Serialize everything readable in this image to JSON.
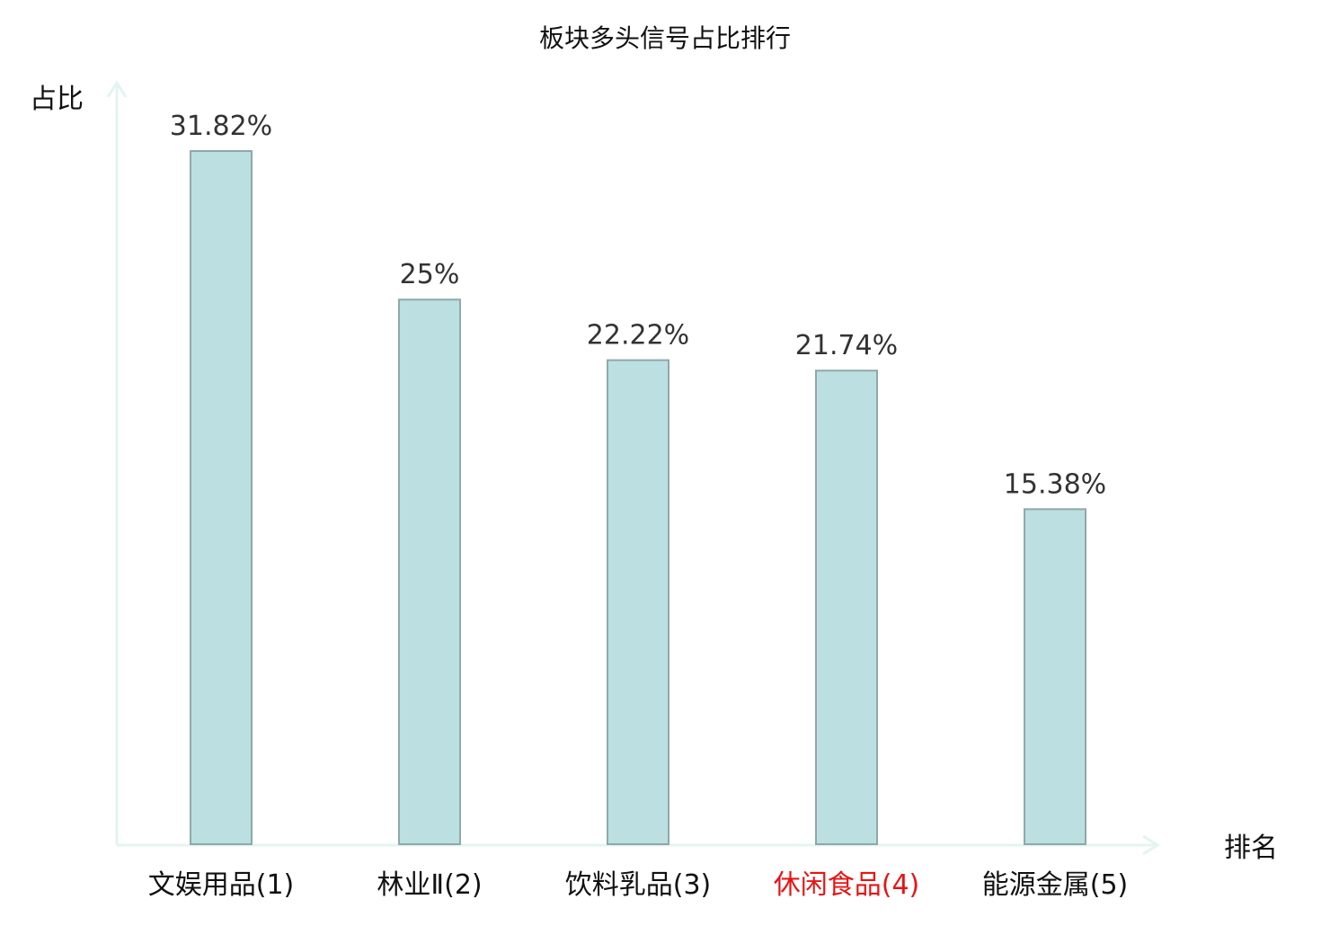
{
  "chart_data": {
    "type": "bar",
    "title": "板块多头信号占比排行",
    "ylabel": "占比",
    "xlabel": "排名",
    "categories": [
      "文娱用品(1)",
      "林业Ⅱ(2)",
      "饮料乳品(3)",
      "休闲食品(4)",
      "能源金属(5)"
    ],
    "values": [
      31.82,
      25,
      22.22,
      21.74,
      15.38
    ],
    "value_labels": [
      "31.82%",
      "25%",
      "22.22%",
      "21.74%",
      "15.38%"
    ],
    "highlight_index": 3,
    "ylim": [
      0,
      31.82
    ],
    "grid": false,
    "legend": "none"
  },
  "colors": {
    "bar_fill": "#bce0e1",
    "bar_stroke": "#8fa8a9",
    "axis": "#e3f4f1",
    "highlight_label": "#e81414",
    "value_label": "#333333"
  }
}
